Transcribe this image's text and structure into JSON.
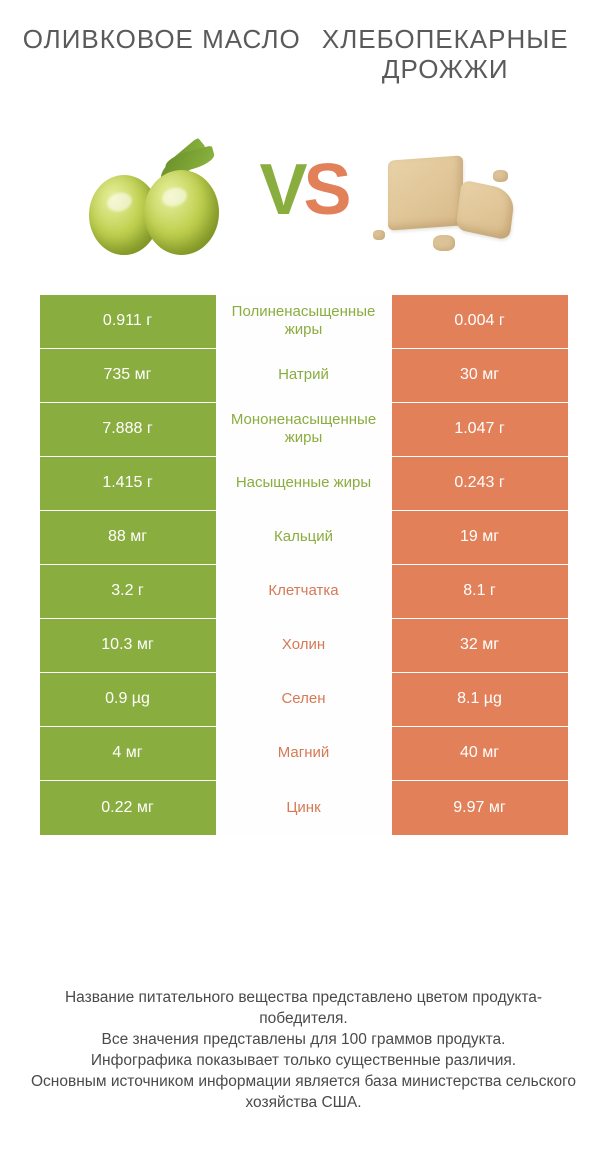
{
  "colors": {
    "green": "#8aad3f",
    "orange": "#e2805a",
    "green_label": "#8aad3f",
    "orange_label": "#d57a55",
    "text_dark": "#5a5a5a"
  },
  "titles": {
    "left": "ОЛИВКОВОЕ МАСЛО",
    "right": "ХЛЕБОПЕКАРНЫЕ ДРОЖЖИ"
  },
  "vs": {
    "v": "V",
    "s": "S"
  },
  "rows": [
    {
      "left": "0.911 г",
      "label": "Полиненасыщенные жиры",
      "right": "0.004 г",
      "winner": "left"
    },
    {
      "left": "735 мг",
      "label": "Натрий",
      "right": "30 мг",
      "winner": "left"
    },
    {
      "left": "7.888 г",
      "label": "Мононенасыщенные жиры",
      "right": "1.047 г",
      "winner": "left"
    },
    {
      "left": "1.415 г",
      "label": "Насыщенные жиры",
      "right": "0.243 г",
      "winner": "left"
    },
    {
      "left": "88 мг",
      "label": "Кальций",
      "right": "19 мг",
      "winner": "left"
    },
    {
      "left": "3.2 г",
      "label": "Клетчатка",
      "right": "8.1 г",
      "winner": "right"
    },
    {
      "left": "10.3 мг",
      "label": "Холин",
      "right": "32 мг",
      "winner": "right"
    },
    {
      "left": "0.9 µg",
      "label": "Селен",
      "right": "8.1 µg",
      "winner": "right"
    },
    {
      "left": "4 мг",
      "label": "Магний",
      "right": "40 мг",
      "winner": "right"
    },
    {
      "left": "0.22 мг",
      "label": "Цинк",
      "right": "9.97 мг",
      "winner": "right"
    }
  ],
  "footer": {
    "line1": "Название питательного вещества представлено цветом продукта-победителя.",
    "line2": "Все значения представлены для 100 граммов продукта.",
    "line3": "Инфографика показывает только существенные различия.",
    "line4": "Основным источником информации является база министерства сельского хозяйства США."
  }
}
